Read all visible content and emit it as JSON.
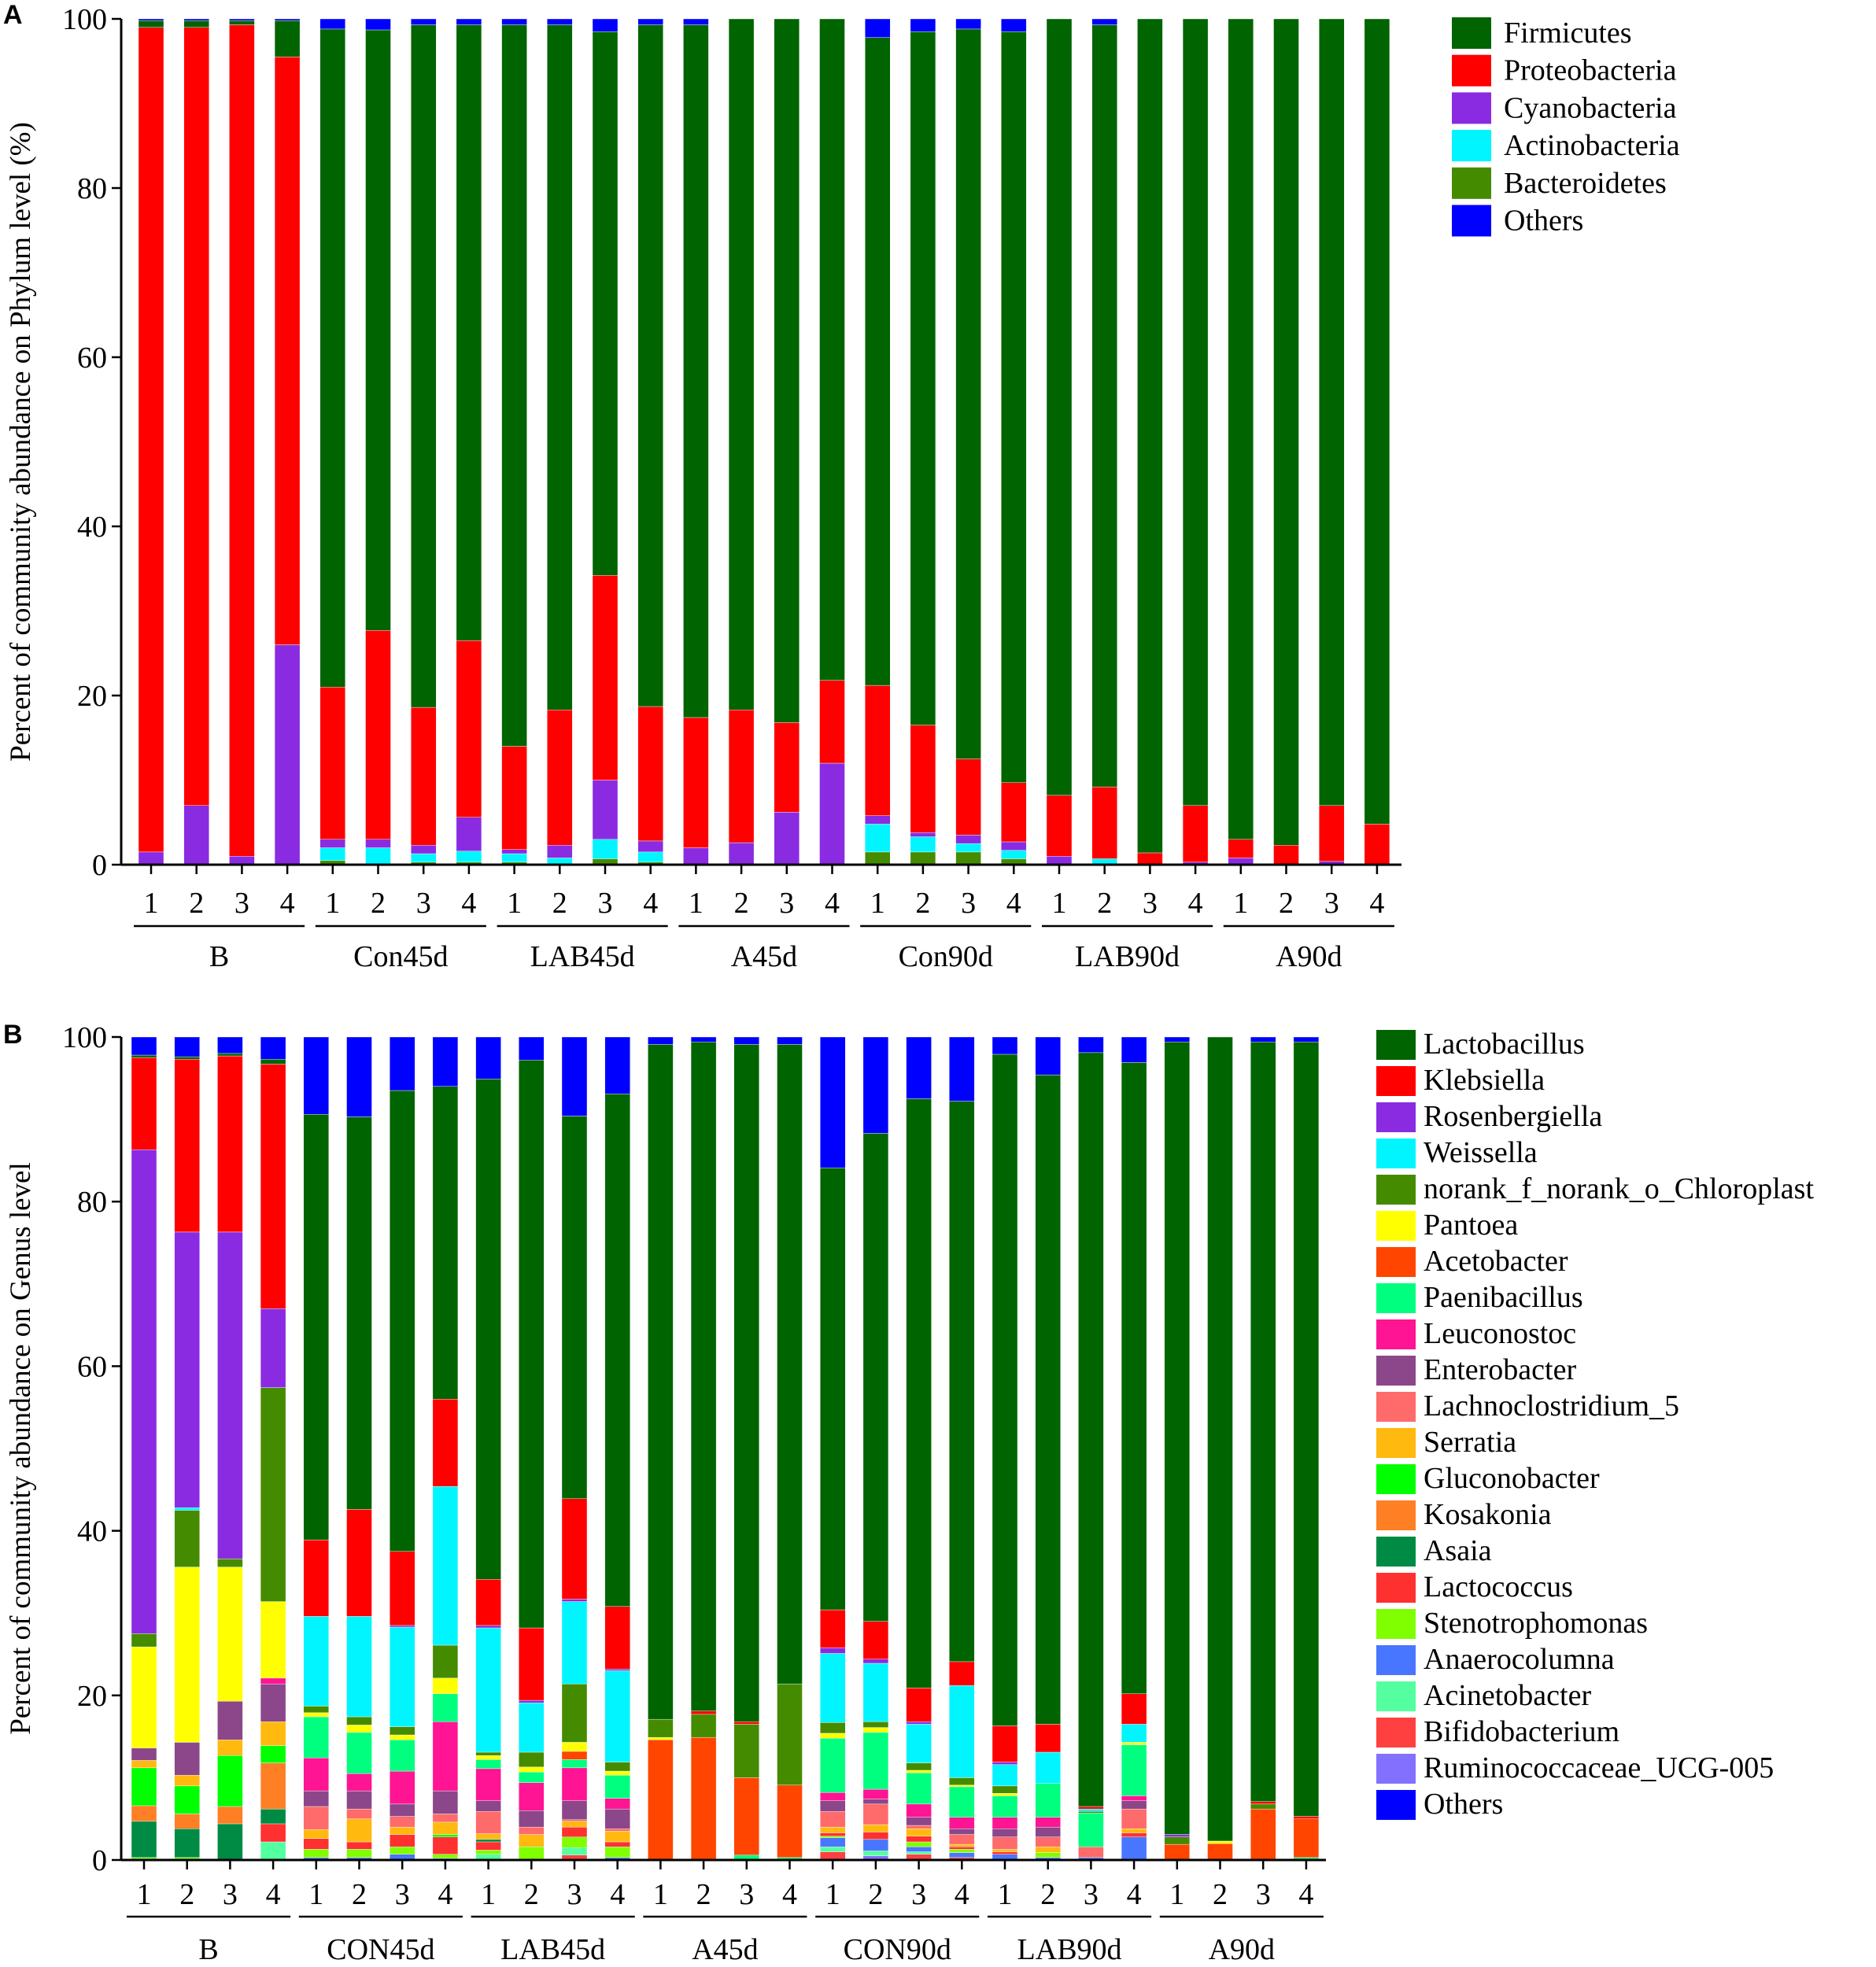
{
  "chart_data": [
    {
      "type": "bar",
      "stacked": true,
      "panel_label": "A",
      "title": "",
      "xlabel": "",
      "ylabel": "Percent of community abundance on Phylum level (%)",
      "ylim": [
        0,
        100
      ],
      "yticks": [
        "0",
        "20",
        "40",
        "60",
        "80",
        "100"
      ],
      "legend_position": "top-right",
      "series": [
        {
          "key": "fir",
          "name": "Firmicutes",
          "color": "#006400"
        },
        {
          "key": "pro",
          "name": "Proteobacteria",
          "color": "#ff0000"
        },
        {
          "key": "cya",
          "name": "Cyanobacteria",
          "color": "#8a2be2"
        },
        {
          "key": "act",
          "name": "Actinobacteria",
          "color": "#00f5ff"
        },
        {
          "key": "bac",
          "name": "Bacteroidetes",
          "color": "#458b00"
        },
        {
          "key": "oth",
          "name": "Others",
          "color": "#0000ff"
        }
      ],
      "stack_order_bottom_up": [
        "bac",
        "act",
        "cya",
        "pro",
        "fir",
        "oth"
      ],
      "groups": [
        "B",
        "Con45d",
        "LAB45d",
        "A45d",
        "Con90d",
        "LAB90d",
        "A90d"
      ],
      "sample_labels": [
        "1",
        "2",
        "3",
        "4"
      ],
      "samples": [
        {
          "cya": 1.5,
          "pro": 97.5,
          "fir": 0.8,
          "oth": 0.2
        },
        {
          "cya": 7.0,
          "pro": 92.0,
          "fir": 0.8,
          "oth": 0.2
        },
        {
          "cya": 1.0,
          "pro": 98.3,
          "fir": 0.5,
          "oth": 0.2
        },
        {
          "cya": 26.0,
          "pro": 69.5,
          "fir": 4.3,
          "oth": 0.2
        },
        {
          "bac": 0.5,
          "act": 1.5,
          "cya": 1.0,
          "pro": 18.0,
          "fir": 77.8,
          "oth": 1.2
        },
        {
          "act": 2.0,
          "cya": 1.0,
          "pro": 24.7,
          "fir": 71.0,
          "oth": 1.3
        },
        {
          "bac": 0.3,
          "act": 1.0,
          "cya": 1.0,
          "pro": 16.3,
          "fir": 80.7,
          "oth": 0.7
        },
        {
          "bac": 0.3,
          "act": 1.3,
          "cya": 4.0,
          "pro": 20.9,
          "fir": 72.8,
          "oth": 0.7
        },
        {
          "bac": 0.3,
          "act": 1.0,
          "cya": 0.5,
          "pro": 12.2,
          "fir": 85.3,
          "oth": 0.7
        },
        {
          "act": 0.8,
          "cya": 1.5,
          "pro": 16.0,
          "fir": 81.0,
          "oth": 0.7
        },
        {
          "bac": 0.7,
          "act": 2.3,
          "cya": 7.0,
          "pro": 24.2,
          "fir": 64.3,
          "oth": 1.5
        },
        {
          "bac": 0.3,
          "act": 1.2,
          "cya": 1.3,
          "pro": 15.9,
          "fir": 80.6,
          "oth": 0.7
        },
        {
          "cya": 2.0,
          "pro": 15.4,
          "fir": 81.9,
          "oth": 0.7
        },
        {
          "cya": 2.6,
          "pro": 15.7,
          "fir": 81.7
        },
        {
          "cya": 6.2,
          "pro": 10.6,
          "fir": 83.2
        },
        {
          "cya": 12.0,
          "pro": 9.8,
          "fir": 78.2
        },
        {
          "bac": 1.5,
          "act": 3.3,
          "cya": 1.0,
          "pro": 15.4,
          "fir": 76.6,
          "oth": 2.2
        },
        {
          "bac": 1.5,
          "act": 1.8,
          "cya": 0.5,
          "pro": 12.7,
          "fir": 82.0,
          "oth": 1.5
        },
        {
          "bac": 1.5,
          "act": 1.0,
          "cya": 1.0,
          "pro": 9.0,
          "fir": 86.3,
          "oth": 1.2
        },
        {
          "bac": 0.7,
          "act": 1.0,
          "cya": 1.0,
          "pro": 7.0,
          "fir": 88.8,
          "oth": 1.5
        },
        {
          "cya": 1.0,
          "pro": 7.2,
          "fir": 91.8
        },
        {
          "act": 0.7,
          "pro": 8.5,
          "fir": 90.1,
          "oth": 0.7
        },
        {
          "pro": 1.4,
          "fir": 98.6
        },
        {
          "cya": 0.3,
          "pro": 6.7,
          "fir": 93.0
        },
        {
          "cya": 0.8,
          "pro": 2.2,
          "fir": 97.0
        },
        {
          "pro": 2.3,
          "fir": 97.7
        },
        {
          "cya": 0.4,
          "pro": 6.6,
          "fir": 93.0
        },
        {
          "pro": 4.8,
          "fir": 95.2
        }
      ]
    },
    {
      "type": "bar",
      "stacked": true,
      "panel_label": "B",
      "title": "",
      "xlabel": "",
      "ylabel": "Percent of community abundance on Genus level",
      "ylim": [
        0,
        100
      ],
      "yticks": [
        "0",
        "20",
        "40",
        "60",
        "80",
        "100"
      ],
      "legend_position": "right",
      "series": [
        {
          "key": "lac",
          "name": "Lactobacillus",
          "color": "#006400"
        },
        {
          "key": "kle",
          "name": "Klebsiella",
          "color": "#ff0000"
        },
        {
          "key": "ros",
          "name": "Rosenbergiella",
          "color": "#8a2be2"
        },
        {
          "key": "wei",
          "name": "Weissella",
          "color": "#00f5ff"
        },
        {
          "key": "chl",
          "name": "norank_f_norank_o_Chloroplast",
          "color": "#458b00"
        },
        {
          "key": "pan",
          "name": "Pantoea",
          "color": "#ffff00"
        },
        {
          "key": "ace",
          "name": "Acetobacter",
          "color": "#ff4500"
        },
        {
          "key": "pae",
          "name": "Paenibacillus",
          "color": "#00ff7f"
        },
        {
          "key": "leu",
          "name": "Leuconostoc",
          "color": "#ff1493"
        },
        {
          "key": "ent",
          "name": "Enterobacter",
          "color": "#8b4789"
        },
        {
          "key": "lcl",
          "name": "Lachnoclostridium_5",
          "color": "#ff6a6a"
        },
        {
          "key": "ser",
          "name": "Serratia",
          "color": "#ffb90f"
        },
        {
          "key": "glu",
          "name": "Gluconobacter",
          "color": "#00ff00"
        },
        {
          "key": "kos",
          "name": "Kosakonia",
          "color": "#ff7f24"
        },
        {
          "key": "asa",
          "name": "Asaia",
          "color": "#008b45"
        },
        {
          "key": "lcc",
          "name": "Lactococcus",
          "color": "#ff3030"
        },
        {
          "key": "ste",
          "name": "Stenotrophomonas",
          "color": "#7fff00"
        },
        {
          "key": "ana",
          "name": "Anaerocolumna",
          "color": "#4876ff"
        },
        {
          "key": "aci",
          "name": "Acinetobacter",
          "color": "#54ff9f"
        },
        {
          "key": "bif",
          "name": "Bifidobacterium",
          "color": "#ff4040"
        },
        {
          "key": "rum",
          "name": "Ruminococcaceae_UCG-005",
          "color": "#8470ff"
        },
        {
          "key": "oth",
          "name": "Others",
          "color": "#0000ff"
        }
      ],
      "stack_order_bottom_up": [
        "rum",
        "bif",
        "aci",
        "ana",
        "ste",
        "lcc",
        "asa",
        "kos",
        "glu",
        "ser",
        "lcl",
        "ent",
        "leu",
        "pae",
        "ace",
        "pan",
        "chl",
        "wei",
        "ros",
        "kle",
        "lac",
        "oth"
      ],
      "groups": [
        "B",
        "CON45d",
        "LAB45d",
        "A45d",
        "CON90d",
        "LAB90d",
        "A90d"
      ],
      "sample_labels": [
        "1",
        "2",
        "3",
        "4"
      ],
      "samples": [
        {
          "ste": 0.3,
          "asa": 4.4,
          "kos": 1.9,
          "glu": 4.6,
          "ser": 0.9,
          "ent": 1.5,
          "pan": 12.3,
          "chl": 1.6,
          "ros": 58.8,
          "kle": 11.2,
          "lac": 0.3,
          "oth": 2.2
        },
        {
          "ste": 0.3,
          "asa": 3.5,
          "kos": 1.8,
          "glu": 3.4,
          "ser": 1.3,
          "ent": 4.0,
          "pan": 21.3,
          "chl": 6.9,
          "wei": 0.3,
          "ros": 33.5,
          "kle": 21.0,
          "lac": 0.3,
          "oth": 2.4
        },
        {
          "asa": 4.4,
          "kos": 2.1,
          "glu": 6.2,
          "ser": 1.9,
          "ent": 4.7,
          "pan": 16.3,
          "chl": 1.0,
          "ros": 39.7,
          "kle": 21.4,
          "lac": 0.3,
          "oth": 2.0
        },
        {
          "aci": 2.2,
          "lcc": 2.2,
          "asa": 1.8,
          "kos": 5.6,
          "glu": 2.1,
          "ser": 2.9,
          "ent": 4.6,
          "leu": 0.7,
          "pan": 9.3,
          "chl": 26.0,
          "ros": 9.6,
          "kle": 29.7,
          "lac": 0.6,
          "oth": 2.7
        },
        {
          "ana": 0.3,
          "ste": 1.0,
          "lcc": 1.3,
          "ser": 1.1,
          "lcl": 2.8,
          "ent": 1.9,
          "leu": 4.0,
          "pae": 5.0,
          "pan": 0.5,
          "chl": 0.8,
          "wei": 10.9,
          "kle": 9.3,
          "lac": 51.7,
          "oth": 9.4
        },
        {
          "ana": 0.3,
          "ste": 1.0,
          "lcc": 0.9,
          "ser": 2.8,
          "lcl": 1.2,
          "ent": 2.2,
          "leu": 2.1,
          "pae": 5.0,
          "pan": 0.9,
          "chl": 1.0,
          "wei": 12.2,
          "kle": 13.0,
          "lac": 47.7,
          "oth": 9.7
        },
        {
          "ana": 0.7,
          "ste": 0.9,
          "lcc": 1.5,
          "ser": 0.9,
          "lcl": 1.3,
          "ent": 1.5,
          "leu": 4.0,
          "pae": 3.8,
          "pan": 0.6,
          "chl": 1.0,
          "wei": 12.1,
          "ros": 0.2,
          "kle": 9.0,
          "lac": 56.0,
          "oth": 6.5
        },
        {
          "ana": 0.2,
          "ste": 0.5,
          "lcc": 2.1,
          "glu": 0.3,
          "ser": 1.5,
          "lcl": 1.0,
          "ent": 2.8,
          "leu": 8.4,
          "pae": 3.4,
          "pan": 1.9,
          "chl": 4.0,
          "wei": 19.3,
          "kle": 10.6,
          "lac": 38.0,
          "oth": 6.0
        },
        {
          "aci": 0.7,
          "ste": 0.5,
          "lcc": 1.0,
          "asa": 0.3,
          "ser": 0.7,
          "lcl": 2.7,
          "ent": 1.3,
          "leu": 3.9,
          "pae": 1.1,
          "pan": 0.5,
          "chl": 0.4,
          "wei": 15.1,
          "ros": 0.3,
          "kle": 5.6,
          "lac": 60.8,
          "oth": 5.1
        },
        {
          "ste": 1.6,
          "ser": 1.5,
          "lcl": 0.9,
          "ent": 2.0,
          "leu": 3.4,
          "pae": 1.3,
          "pan": 0.6,
          "chl": 1.8,
          "wei": 6.0,
          "ros": 0.3,
          "kle": 8.8,
          "lac": 69.0,
          "oth": 2.8
        },
        {
          "bif": 0.6,
          "aci": 0.9,
          "ste": 1.3,
          "lcc": 1.2,
          "ser": 0.7,
          "lcl": 0.2,
          "ent": 2.3,
          "leu": 4.0,
          "pae": 1.0,
          "ace": 1.0,
          "pan": 1.1,
          "chl": 7.1,
          "wei": 10.0,
          "ros": 0.3,
          "kle": 12.2,
          "lac": 46.5,
          "oth": 9.6
        },
        {
          "ana": 0.3,
          "ste": 1.3,
          "lcc": 0.6,
          "ser": 1.3,
          "lcl": 0.3,
          "ent": 2.4,
          "leu": 1.3,
          "pae": 2.8,
          "pan": 0.5,
          "chl": 1.1,
          "wei": 11.1,
          "ros": 0.2,
          "kle": 7.6,
          "lac": 62.3,
          "oth": 6.9
        },
        {
          "ace": 14.6,
          "pan": 0.3,
          "chl": 2.2,
          "lac": 82.0,
          "oth": 0.9
        },
        {
          "ace": 14.9,
          "chl": 2.8,
          "kle": 0.4,
          "lac": 81.3,
          "oth": 0.6
        },
        {
          "pae": 0.6,
          "ace": 9.4,
          "chl": 6.5,
          "kle": 0.3,
          "lac": 82.3,
          "oth": 0.9
        },
        {
          "pae": 0.3,
          "ace": 8.8,
          "chl": 12.3,
          "lac": 77.7,
          "oth": 0.9
        },
        {
          "bif": 1.0,
          "aci": 0.6,
          "ana": 1.1,
          "ste": 0.2,
          "lcc": 0.4,
          "ser": 0.7,
          "lcl": 1.9,
          "ent": 1.3,
          "leu": 1.0,
          "pae": 6.6,
          "pan": 0.6,
          "chl": 1.3,
          "wei": 8.4,
          "ros": 0.7,
          "kle": 4.6,
          "lac": 53.7,
          "oth": 15.9
        },
        {
          "rum": 0.5,
          "aci": 0.6,
          "ana": 1.4,
          "lcc": 0.9,
          "ser": 0.9,
          "lcl": 2.5,
          "ent": 0.6,
          "leu": 1.2,
          "pae": 6.9,
          "pan": 0.6,
          "chl": 0.7,
          "wei": 7.1,
          "ros": 0.5,
          "kle": 4.6,
          "lac": 59.3,
          "oth": 11.7
        },
        {
          "bif": 0.7,
          "aci": 0.3,
          "ana": 0.6,
          "ste": 0.6,
          "lcc": 0.7,
          "ser": 0.9,
          "lcl": 0.4,
          "ent": 1.0,
          "leu": 1.6,
          "pae": 3.8,
          "pan": 0.3,
          "chl": 0.9,
          "wei": 4.7,
          "ros": 0.3,
          "kle": 4.1,
          "lac": 71.6,
          "oth": 7.5
        },
        {
          "bif": 0.3,
          "ana": 0.6,
          "ste": 0.4,
          "lcc": 0.3,
          "ser": 0.3,
          "lcl": 1.2,
          "ent": 0.7,
          "leu": 1.4,
          "pae": 3.7,
          "pan": 0.2,
          "chl": 0.9,
          "wei": 11.2,
          "kle": 2.9,
          "lac": 68.1,
          "oth": 7.8
        },
        {
          "ana": 0.7,
          "lcc": 0.3,
          "ser": 0.3,
          "lcl": 1.5,
          "ent": 1.0,
          "leu": 1.4,
          "pae": 2.6,
          "pan": 0.3,
          "chl": 0.9,
          "wei": 2.6,
          "ros": 0.3,
          "kle": 4.4,
          "lac": 81.6,
          "oth": 2.1
        },
        {
          "ana": 0.3,
          "ste": 0.6,
          "ser": 0.7,
          "lcl": 1.2,
          "ent": 1.2,
          "leu": 1.2,
          "pae": 4.1,
          "wei": 3.8,
          "kle": 3.4,
          "lac": 78.9,
          "oth": 4.6
        },
        {
          "ana": 0.3,
          "lcl": 1.3,
          "pae": 4.1,
          "chl": 0.2,
          "wei": 0.3,
          "kle": 0.3,
          "lac": 91.6,
          "oth": 1.9
        },
        {
          "ana": 2.8,
          "lcc": 0.5,
          "ser": 0.5,
          "lcl": 2.4,
          "ent": 1.0,
          "leu": 0.6,
          "pae": 6.2,
          "pan": 0.3,
          "wei": 2.2,
          "kle": 3.7,
          "lac": 76.7,
          "oth": 3.1
        },
        {
          "ace": 1.9,
          "chl": 0.9,
          "ros": 0.3,
          "lac": 96.3,
          "oth": 0.6
        },
        {
          "ace": 2.0,
          "pan": 0.3,
          "lac": 97.7
        },
        {
          "ace": 6.2,
          "chl": 0.6,
          "kle": 0.3,
          "lac": 92.3,
          "oth": 0.6
        },
        {
          "pae": 0.3,
          "ace": 4.7,
          "kle": 0.3,
          "lac": 94.1,
          "oth": 0.6
        }
      ]
    }
  ]
}
